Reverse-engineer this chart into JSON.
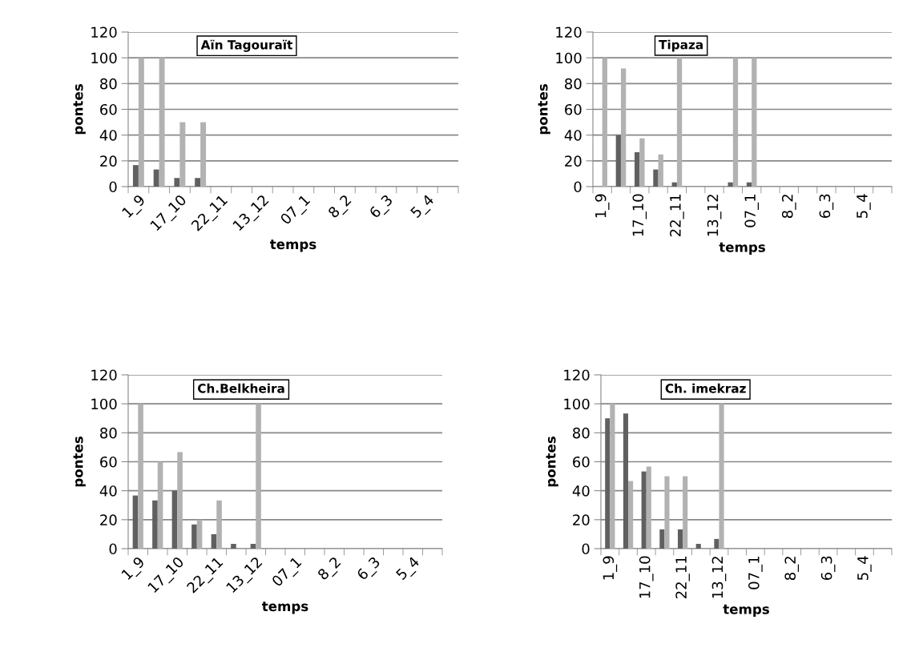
{
  "chart_data": [
    {
      "type": "bar",
      "title": "Aïn Tagouraït",
      "xlabel": "temps",
      "ylabel": "pontes",
      "categories": [
        "1_9",
        null,
        "17_10",
        null,
        "22_11",
        null,
        "13_12",
        null,
        "07_1",
        null,
        "8_2",
        null,
        "6_3",
        null,
        "5_4",
        null
      ],
      "series": [
        {
          "color": "#606060",
          "values": [
            16.7,
            13.3,
            6.7,
            6.7,
            0,
            0,
            0,
            0,
            0,
            0,
            0,
            0,
            0,
            0,
            0,
            0
          ]
        },
        {
          "color": "#b2b2b2",
          "values": [
            100,
            100,
            50,
            50,
            0,
            0,
            0,
            0,
            0,
            0,
            0,
            0,
            0,
            0,
            0,
            0
          ]
        }
      ],
      "ylim": [
        0,
        120
      ],
      "yticks": [
        0,
        20,
        40,
        60,
        80,
        100,
        120
      ],
      "grid": "y"
    },
    {
      "type": "bar",
      "title": "Tipaza",
      "xlabel": "temps",
      "ylabel": "pontes",
      "categories": [
        "1_9",
        null,
        "17_10",
        null,
        "22_11",
        null,
        "13_12",
        null,
        "07_1",
        null,
        "8_2",
        null,
        "6_3",
        null,
        "5_4",
        null
      ],
      "series": [
        {
          "color": "#606060",
          "values": [
            0,
            40,
            26.7,
            13.3,
            3.3,
            0,
            0,
            3.3,
            3.3,
            0,
            0,
            0,
            0,
            0,
            0,
            0
          ]
        },
        {
          "color": "#b2b2b2",
          "values": [
            100,
            91.7,
            37.5,
            25,
            100,
            0,
            0,
            100,
            100,
            0,
            0,
            0,
            0,
            0,
            0,
            0
          ]
        }
      ],
      "ylim": [
        0,
        120
      ],
      "yticks": [
        0,
        20,
        40,
        60,
        80,
        100,
        120
      ],
      "grid": "y"
    },
    {
      "type": "bar",
      "title": "Ch.Belkheira",
      "xlabel": "temps",
      "ylabel": "pontes",
      "categories": [
        "1_9",
        null,
        "17_10",
        null,
        "22_11",
        null,
        "13_12",
        null,
        "07_1",
        null,
        "8_2",
        null,
        "6_3",
        null,
        "5_4",
        null
      ],
      "series": [
        {
          "color": "#606060",
          "values": [
            36.7,
            33.3,
            40,
            16.7,
            10,
            3.3,
            3.3,
            0,
            0,
            0,
            0,
            0,
            0,
            0,
            0,
            0
          ]
        },
        {
          "color": "#b2b2b2",
          "values": [
            100,
            60,
            66.7,
            20,
            33.3,
            0,
            100,
            0,
            0,
            0,
            0,
            0,
            0,
            0,
            0,
            0
          ]
        }
      ],
      "ylim": [
        0,
        120
      ],
      "yticks": [
        0,
        20,
        40,
        60,
        80,
        100,
        120
      ],
      "grid": "y"
    },
    {
      "type": "bar",
      "title": "Ch. imekraz",
      "xlabel": "temps",
      "ylabel": "pontes",
      "categories": [
        "1_9",
        null,
        "17_10",
        null,
        "22_11",
        null,
        "13_12",
        null,
        "07_1",
        null,
        "8_2",
        null,
        "6_3",
        null,
        "5_4",
        null
      ],
      "series": [
        {
          "color": "#606060",
          "values": [
            90,
            93.3,
            53.3,
            13.3,
            13.3,
            3.3,
            6.7,
            0,
            0,
            0,
            0,
            0,
            0,
            0,
            0,
            0
          ]
        },
        {
          "color": "#b2b2b2",
          "values": [
            100,
            46.7,
            56.7,
            50,
            50,
            0,
            100,
            0,
            0,
            0,
            0,
            0,
            0,
            0,
            0,
            0
          ]
        }
      ],
      "ylim": [
        0,
        120
      ],
      "yticks": [
        0,
        20,
        40,
        60,
        80,
        100,
        120
      ],
      "grid": "y"
    }
  ]
}
